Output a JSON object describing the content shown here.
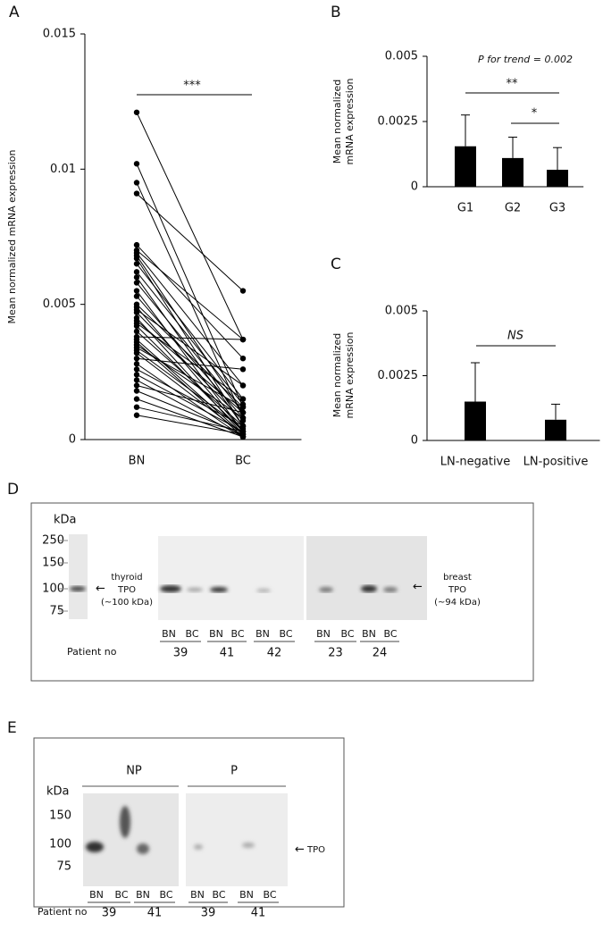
{
  "chart_data": [
    {
      "type": "line",
      "panel": "A",
      "ylabel": "Mean normalized mRNA expression",
      "categories": [
        "BN",
        "BC"
      ],
      "ylim": [
        0,
        0.015
      ],
      "yticks": [
        0,
        0.005,
        0.01,
        0.015
      ],
      "color": "#000",
      "annotations": [
        "***"
      ],
      "series": [
        {
          "values": [
            0.0121,
            0.0037
          ]
        },
        {
          "values": [
            0.0102,
            0.0012
          ]
        },
        {
          "values": [
            0.0095,
            0.0008
          ]
        },
        {
          "values": [
            0.0091,
            0.0055
          ]
        },
        {
          "values": [
            0.0072,
            0.003
          ]
        },
        {
          "values": [
            0.007,
            0.0037
          ]
        },
        {
          "values": [
            0.0069,
            0.002
          ]
        },
        {
          "values": [
            0.0068,
            0.001
          ]
        },
        {
          "values": [
            0.0067,
            0.0005
          ]
        },
        {
          "values": [
            0.0065,
            0.0015
          ]
        },
        {
          "values": [
            0.0062,
            0.0013
          ]
        },
        {
          "values": [
            0.006,
            0.0005
          ]
        },
        {
          "values": [
            0.0058,
            0.001
          ]
        },
        {
          "values": [
            0.0055,
            0.0003
          ]
        },
        {
          "values": [
            0.0053,
            0.0008
          ]
        },
        {
          "values": [
            0.005,
            0.0012
          ]
        },
        {
          "values": [
            0.0049,
            0.0003
          ]
        },
        {
          "values": [
            0.0048,
            0.002
          ]
        },
        {
          "values": [
            0.0047,
            0.0007
          ]
        },
        {
          "values": [
            0.0045,
            0.0002
          ]
        },
        {
          "values": [
            0.0044,
            0.001
          ]
        },
        {
          "values": [
            0.0043,
            0.0015
          ]
        },
        {
          "values": [
            0.0042,
            0.0003
          ]
        },
        {
          "values": [
            0.004,
            0.0005
          ]
        },
        {
          "values": [
            0.0038,
            0.0037
          ]
        },
        {
          "values": [
            0.0037,
            0.0002
          ]
        },
        {
          "values": [
            0.0036,
            0.0001
          ]
        },
        {
          "values": [
            0.0035,
            0.0008
          ]
        },
        {
          "values": [
            0.0034,
            0.0012
          ]
        },
        {
          "values": [
            0.0033,
            0.0004
          ]
        },
        {
          "values": [
            0.0032,
            0.0002
          ]
        },
        {
          "values": [
            0.003,
            0.0026
          ]
        },
        {
          "values": [
            0.0028,
            0.0001
          ]
        },
        {
          "values": [
            0.0026,
            0.0005
          ]
        },
        {
          "values": [
            0.0024,
            0.0003
          ]
        },
        {
          "values": [
            0.0022,
            0.0001
          ]
        },
        {
          "values": [
            0.002,
            0.001
          ]
        },
        {
          "values": [
            0.0018,
            0.0002
          ]
        },
        {
          "values": [
            0.0015,
            0.0001
          ]
        },
        {
          "values": [
            0.0012,
            0.0003
          ]
        },
        {
          "values": [
            0.0009,
            0.0002
          ]
        }
      ]
    },
    {
      "type": "bar",
      "panel": "B",
      "ylabel": [
        "Mean normalized",
        "mRNA expression"
      ],
      "categories": [
        "G1",
        "G2",
        "G3"
      ],
      "values": [
        0.00155,
        0.0011,
        0.00065
      ],
      "errors": [
        0.0012,
        0.0008,
        0.00085
      ],
      "ylim": [
        0,
        0.005
      ],
      "yticks": [
        0,
        0.0025,
        0.005
      ],
      "color": "#000",
      "annotations": [
        "P for trend = 0.002",
        "**",
        "*"
      ]
    },
    {
      "type": "bar",
      "panel": "C",
      "ylabel": [
        "Mean normalized",
        "mRNA expression"
      ],
      "categories": [
        "LN-negative",
        "LN-positive"
      ],
      "values": [
        0.0015,
        0.0008
      ],
      "errors": [
        0.0015,
        0.0006
      ],
      "ylim": [
        0,
        0.005
      ],
      "yticks": [
        0,
        0.0025,
        0.005
      ],
      "color": "#000",
      "annotations": [
        "NS"
      ]
    }
  ],
  "blots": [
    {
      "panel": "D",
      "unit": "kDa",
      "markers": [
        250,
        150,
        100,
        75
      ],
      "left_label": [
        "thyroid",
        "TPO",
        "(~100 kDa)"
      ],
      "right_label": [
        "breast",
        "TPO",
        "(~94 kDa)"
      ],
      "lanes": [
        "BN",
        "BC",
        "BN",
        "BC",
        "BN",
        "BC",
        "BN",
        "BC",
        "BN",
        "BC"
      ],
      "patient_label": "Patient no",
      "patients": [
        "39",
        "41",
        "42",
        "23",
        "24"
      ]
    },
    {
      "panel": "E",
      "groups": [
        "NP",
        "P"
      ],
      "unit": "kDa",
      "markers": [
        150,
        100,
        75
      ],
      "band_label": "TPO",
      "lanes": [
        "BN",
        "BC",
        "BN",
        "BC",
        "BN",
        "BC",
        "BN",
        "BC"
      ],
      "patient_label": "Patient no",
      "patients": [
        "39",
        "41",
        "39",
        "41"
      ]
    }
  ]
}
